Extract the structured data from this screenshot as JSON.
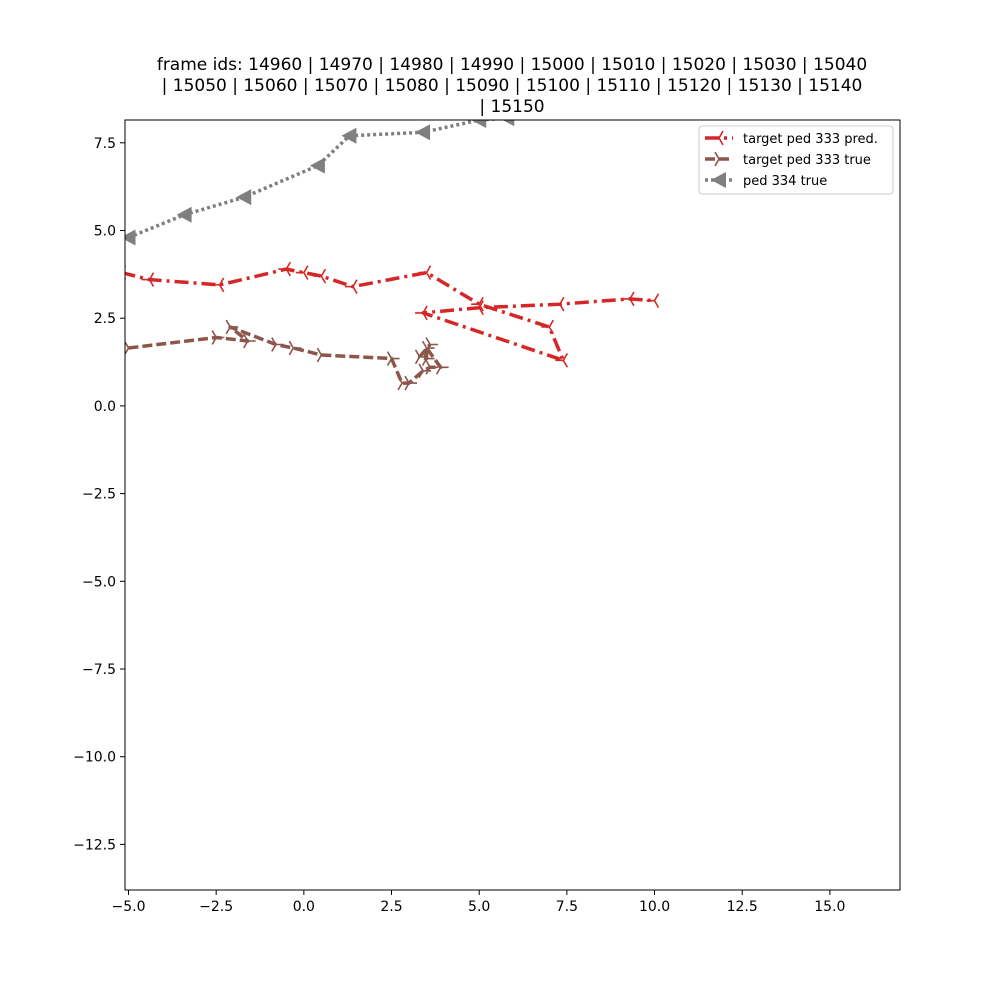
{
  "chart_data": {
    "type": "line",
    "title_lines": [
      "frame ids: 14960 | 14970 | 14980 | 14990 | 15000 | 15010 | 15020 | 15030 | 15040",
      "| 15050 | 15060 | 15070 | 15080 | 15090 | 15100 | 15110 | 15120 | 15130 | 15140",
      "| 15150"
    ],
    "xlabel": "",
    "ylabel": "",
    "xlim": [
      -5.1,
      17.0
    ],
    "ylim": [
      -13.8,
      8.15
    ],
    "xticks": [
      -5.0,
      -2.5,
      0.0,
      2.5,
      5.0,
      7.5,
      10.0,
      12.5,
      15.0
    ],
    "xtick_labels": [
      "−5.0",
      "−2.5",
      "0.0",
      "2.5",
      "5.0",
      "7.5",
      "10.0",
      "12.5",
      "15.0"
    ],
    "yticks": [
      7.5,
      5.0,
      2.5,
      0.0,
      -2.5,
      -5.0,
      -7.5,
      -10.0,
      -12.5
    ],
    "ytick_labels": [
      "7.5",
      "5.0",
      "2.5",
      "0.0",
      "−2.5",
      "−5.0",
      "−7.5",
      "−10.0",
      "−12.5"
    ],
    "grid": false,
    "legend_position": "top-right",
    "series": [
      {
        "name": "target ped 333 pred.",
        "color": "#d62728",
        "linestyle": "dash-dot",
        "marker": "tri-left",
        "points": [
          [
            -5.2,
            3.8
          ],
          [
            -4.4,
            3.6
          ],
          [
            -2.4,
            3.45
          ],
          [
            -0.5,
            3.9
          ],
          [
            0.0,
            3.8
          ],
          [
            0.5,
            3.7
          ],
          [
            1.4,
            3.4
          ],
          [
            3.5,
            3.8
          ],
          [
            5.0,
            2.9
          ],
          [
            7.0,
            2.25
          ],
          [
            7.4,
            1.3
          ],
          [
            3.4,
            2.65
          ],
          [
            5.0,
            2.8
          ],
          [
            7.3,
            2.9
          ],
          [
            9.3,
            3.05
          ],
          [
            10.0,
            3.0
          ]
        ]
      },
      {
        "name": "target ped 333 true",
        "color": "#8c564b",
        "linestyle": "dashed",
        "marker": "tri-right",
        "points": [
          [
            -5.0,
            1.65
          ],
          [
            -2.5,
            1.95
          ],
          [
            -1.6,
            1.85
          ],
          [
            -2.1,
            2.25
          ],
          [
            -0.8,
            1.75
          ],
          [
            -0.3,
            1.65
          ],
          [
            0.5,
            1.45
          ],
          [
            2.5,
            1.35
          ],
          [
            2.8,
            0.65
          ],
          [
            3.0,
            0.65
          ],
          [
            3.4,
            1.0
          ],
          [
            3.6,
            1.1
          ],
          [
            3.9,
            1.1
          ],
          [
            3.5,
            1.65
          ],
          [
            3.5,
            1.35
          ],
          [
            3.3,
            1.4
          ],
          [
            3.6,
            1.75
          ]
        ]
      },
      {
        "name": "ped 334 true",
        "color": "#7f7f7f",
        "linestyle": "dotted",
        "marker": "triangle-left",
        "points": [
          [
            -5.0,
            4.8
          ],
          [
            -3.4,
            5.45
          ],
          [
            -1.7,
            5.95
          ],
          [
            0.4,
            6.85
          ],
          [
            1.3,
            7.7
          ],
          [
            3.4,
            7.8
          ],
          [
            5.0,
            8.15
          ],
          [
            5.8,
            8.2
          ]
        ]
      }
    ]
  }
}
